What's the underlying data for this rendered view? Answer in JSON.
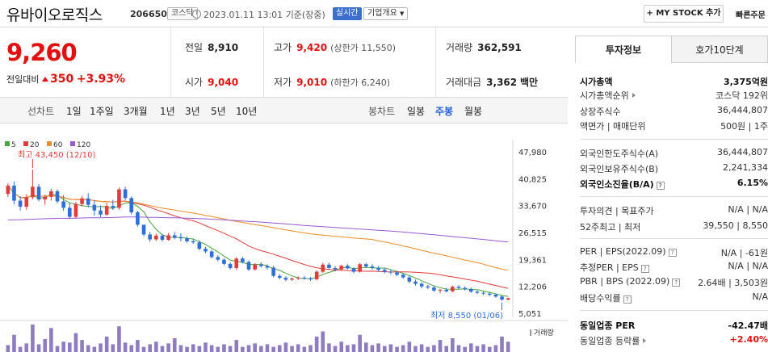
{
  "header": {
    "stock_name": "유바이오로직스",
    "stock_code": "206650",
    "market_badge": "코스닥",
    "datetime": "2023.01.11 13:01",
    "status": "기준(장중)",
    "live_badge": "실시간",
    "company_button": "기업개요",
    "mystock_button": "MY STOCK 추가",
    "refresh_label": "빠른주문"
  },
  "price": {
    "current": "9,260",
    "change_label": "전일대비",
    "change_value": "350",
    "change_rate": "+3.93%",
    "direction": "up"
  },
  "stats": {
    "prev_close_label": "전일",
    "prev_close": "8,910",
    "high_label": "고가",
    "high": "9,420",
    "upper_limit": "(상한가 11,550)",
    "volume_label": "거래량",
    "volume": "362,591",
    "open_label": "시가",
    "open": "9,040",
    "low_label": "저가",
    "low": "9,010",
    "lower_limit": "(하한가 6,240)",
    "amount_label": "거래대금",
    "amount": "3,362",
    "amount_unit": "백만"
  },
  "toolbar": {
    "line_chart_label": "선차트",
    "periods": [
      "1일",
      "1주일",
      "3개월",
      "1년",
      "3년",
      "5년",
      "10년"
    ],
    "candle_chart_label": "봉차트",
    "candle_periods": [
      "일봉",
      "주봉",
      "월봉"
    ],
    "active_candle": "주봉"
  },
  "chart_data": {
    "type": "candlestick",
    "legend": [
      "5",
      "20",
      "60",
      "120"
    ],
    "legend_colors": [
      "#4aa63e",
      "#e33b3b",
      "#f08c24",
      "#9b59d0"
    ],
    "y_ticks": [
      "47,980",
      "40,825",
      "33,670",
      "26,515",
      "19,361",
      "12,206",
      "5,051"
    ],
    "ylim": [
      5051,
      47980
    ],
    "volume_label": "거래량",
    "annotations": {
      "max_label": "최고 43,450 (12/10)",
      "min_label": "최저 8,550 (01/06)"
    },
    "candles": [
      [
        37000,
        39800,
        36200,
        39200
      ],
      [
        39200,
        40300,
        34200,
        35200
      ],
      [
        35200,
        36400,
        32600,
        33600
      ],
      [
        33600,
        36900,
        32800,
        36100
      ],
      [
        36100,
        43450,
        35600,
        38900
      ],
      [
        38900,
        39600,
        35000,
        35500
      ],
      [
        35500,
        36800,
        34100,
        36200
      ],
      [
        36200,
        38400,
        35200,
        37700
      ],
      [
        37700,
        38200,
        34500,
        35000
      ],
      [
        35000,
        36700,
        32500,
        33300
      ],
      [
        33300,
        34600,
        30400,
        30900
      ],
      [
        30900,
        34900,
        30500,
        34300
      ],
      [
        34300,
        36400,
        33700,
        35800
      ],
      [
        35800,
        37200,
        33400,
        34100
      ],
      [
        34100,
        35300,
        31200,
        32600
      ],
      [
        32600,
        33900,
        30800,
        31500
      ],
      [
        31500,
        34600,
        31200,
        33800
      ],
      [
        33800,
        35400,
        32700,
        33300
      ],
      [
        33300,
        38700,
        32800,
        38200
      ],
      [
        38200,
        38900,
        35200,
        35900
      ],
      [
        35900,
        36300,
        31500,
        32100
      ],
      [
        32100,
        32500,
        28300,
        28800
      ],
      [
        28800,
        28600,
        25700,
        26200
      ],
      [
        26200,
        26900,
        24300,
        24900
      ],
      [
        24900,
        26400,
        24500,
        25900
      ],
      [
        25900,
        26300,
        24300,
        24800
      ],
      [
        24800,
        26600,
        24500,
        26000
      ],
      [
        26000,
        26900,
        24900,
        25400
      ],
      [
        25400,
        26500,
        24400,
        25200
      ],
      [
        25200,
        25700,
        24000,
        24400
      ],
      [
        24400,
        25000,
        23700,
        24100
      ],
      [
        24100,
        24600,
        22000,
        22400
      ],
      [
        22400,
        22900,
        21200,
        21700
      ],
      [
        21700,
        22100,
        19800,
        20200
      ],
      [
        20200,
        20700,
        19100,
        19500
      ],
      [
        19500,
        19900,
        18000,
        18400
      ],
      [
        18400,
        18800,
        16900,
        17300
      ],
      [
        17300,
        20200,
        16800,
        19800
      ],
      [
        19800,
        20300,
        18500,
        18900
      ],
      [
        18900,
        19300,
        16500,
        16900
      ],
      [
        16900,
        18600,
        16600,
        18200
      ],
      [
        18200,
        18800,
        17400,
        17800
      ],
      [
        17800,
        18300,
        16900,
        17400
      ],
      [
        17400,
        17900,
        14800,
        15200
      ],
      [
        15200,
        15700,
        14300,
        14700
      ],
      [
        14700,
        15100,
        13800,
        14200
      ],
      [
        14200,
        14800,
        13900,
        14500
      ],
      [
        14500,
        15100,
        14100,
        14700
      ],
      [
        14700,
        15200,
        14200,
        14500
      ],
      [
        14500,
        14900,
        13900,
        14300
      ],
      [
        14300,
        16700,
        14000,
        16300
      ],
      [
        16300,
        18700,
        16000,
        18200
      ],
      [
        18200,
        18700,
        16900,
        17300
      ],
      [
        17300,
        17800,
        16400,
        16900
      ],
      [
        16900,
        18200,
        16700,
        17900
      ],
      [
        17900,
        18300,
        16900,
        17200
      ],
      [
        17200,
        17500,
        15900,
        16300
      ],
      [
        16300,
        18600,
        16100,
        18300
      ],
      [
        18300,
        18700,
        17300,
        17700
      ],
      [
        17700,
        18300,
        16900,
        17300
      ],
      [
        17300,
        17800,
        16400,
        16800
      ],
      [
        16800,
        17300,
        15900,
        16300
      ],
      [
        16300,
        16900,
        15600,
        16100
      ],
      [
        16100,
        16400,
        15100,
        15500
      ],
      [
        15500,
        15900,
        14400,
        14800
      ],
      [
        14800,
        15200,
        13300,
        13700
      ],
      [
        13700,
        14200,
        12600,
        13100
      ],
      [
        13100,
        13500,
        11900,
        12400
      ],
      [
        12400,
        12800,
        11700,
        12100
      ],
      [
        12100,
        12500,
        10900,
        11300
      ],
      [
        11300,
        11800,
        10600,
        11500
      ],
      [
        11500,
        12000,
        10800,
        11100
      ],
      [
        11100,
        12600,
        10900,
        12300
      ],
      [
        12300,
        12700,
        11600,
        12000
      ],
      [
        12000,
        12400,
        11300,
        11700
      ],
      [
        11700,
        12100,
        10700,
        11000
      ],
      [
        11000,
        11400,
        10400,
        10700
      ],
      [
        10700,
        11100,
        10100,
        10500
      ],
      [
        10500,
        10800,
        9800,
        10200
      ],
      [
        10200,
        10500,
        9400,
        9700
      ],
      [
        9700,
        10100,
        8550,
        8900
      ],
      [
        8900,
        9420,
        8700,
        9260
      ]
    ],
    "volumes": [
      8,
      20,
      6,
      10,
      32,
      9,
      15,
      28,
      7,
      12,
      11,
      22,
      14,
      8,
      6,
      10,
      18,
      9,
      30,
      11,
      8,
      14,
      6,
      9,
      12,
      7,
      10,
      16,
      8,
      6,
      9,
      7,
      11,
      8,
      6,
      9,
      7,
      14,
      6,
      8,
      10,
      7,
      9,
      6,
      8,
      11,
      7,
      9,
      6,
      8,
      18,
      24,
      10,
      7,
      12,
      8,
      9,
      20,
      11,
      8,
      10,
      7,
      9,
      6,
      8,
      12,
      7,
      9,
      6,
      8,
      14,
      7,
      16,
      8,
      6,
      10,
      7,
      9,
      6,
      8,
      18,
      12
    ]
  },
  "side": {
    "tabs": [
      "투자정보",
      "호가10단계"
    ],
    "rows": [
      {
        "label": "시가총액",
        "value": "3,375억원"
      },
      {
        "label": "시가총액순위",
        "value": "코스닥 192위"
      },
      {
        "label": "상장주식수",
        "value": "36,444,807"
      },
      {
        "label": "액면가 | 매매단위",
        "value": "500원 | 1주"
      },
      {
        "label": "외국인한도주식수(A)",
        "value": "36,444,807"
      },
      {
        "label": "외국인보유주식수(B)",
        "value": "2,241,334"
      },
      {
        "label": "외국인소진율(B/A)",
        "value": "6.15%"
      },
      {
        "label": "투자의견 | 목표주가",
        "value": "N/A | N/A"
      },
      {
        "label": "52주최고 | 최저",
        "value": "39,550 | 8,550"
      },
      {
        "label": "PER | EPS(2022.09)",
        "value": "N/A | -61원"
      },
      {
        "label": "추정PER | EPS",
        "value": "N/A | N/A"
      },
      {
        "label": "PBR | BPS (2022.09)",
        "value": "2.64배 | 3,503원"
      },
      {
        "label": "배당수익률",
        "value": "N/A"
      },
      {
        "label": "동일업종 PER",
        "value": "-42.47배"
      },
      {
        "label": "동일업종 등락률",
        "value": "+2.40%"
      }
    ]
  }
}
